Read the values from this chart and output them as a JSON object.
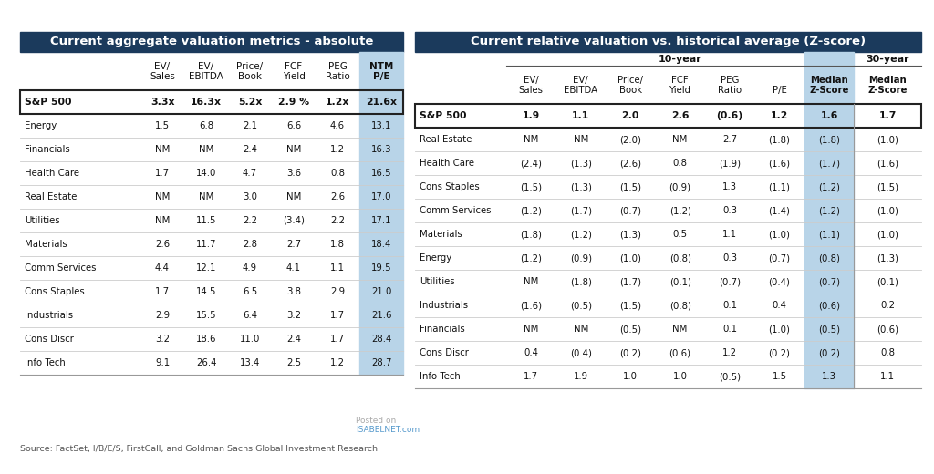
{
  "title1": "Current aggregate valuation metrics - absolute",
  "title2": "Current relative valuation vs. historical average (Z-score)",
  "header_bg": "#1b3a5c",
  "header_text_color": "#ffffff",
  "bg_color": "#ffffff",
  "table_bg": "#ffffff",
  "highlight_col_bg": "#b8d4e8",
  "subheader_10year": "10-year",
  "subheader_30year": "30-year",
  "left_table": {
    "col_headers_line1": [
      "EV/",
      "EV/",
      "Price/",
      "FCF",
      "PEG",
      "NTM"
    ],
    "col_headers_line2": [
      "Sales",
      "EBITDA",
      "Book",
      "Yield",
      "Ratio",
      "P/E"
    ],
    "sp500_row": [
      "S&P 500",
      "3.3x",
      "16.3x",
      "5.2x",
      "2.9 %",
      "1.2x",
      "21.6x"
    ],
    "rows": [
      [
        "Energy",
        "1.5",
        "6.8",
        "2.1",
        "6.6",
        "4.6",
        "13.1"
      ],
      [
        "Financials",
        "NM",
        "NM",
        "2.4",
        "NM",
        "1.2",
        "16.3"
      ],
      [
        "Health Care",
        "1.7",
        "14.0",
        "4.7",
        "3.6",
        "0.8",
        "16.5"
      ],
      [
        "Real Estate",
        "NM",
        "NM",
        "3.0",
        "NM",
        "2.6",
        "17.0"
      ],
      [
        "Utilities",
        "NM",
        "11.5",
        "2.2",
        "(3.4)",
        "2.2",
        "17.1"
      ],
      [
        "Materials",
        "2.6",
        "11.7",
        "2.8",
        "2.7",
        "1.8",
        "18.4"
      ],
      [
        "Comm Services",
        "4.4",
        "12.1",
        "4.9",
        "4.1",
        "1.1",
        "19.5"
      ],
      [
        "Cons Staples",
        "1.7",
        "14.5",
        "6.5",
        "3.8",
        "2.9",
        "21.0"
      ],
      [
        "Industrials",
        "2.9",
        "15.5",
        "6.4",
        "3.2",
        "1.7",
        "21.6"
      ],
      [
        "Cons Discr",
        "3.2",
        "18.6",
        "11.0",
        "2.4",
        "1.7",
        "28.4"
      ],
      [
        "Info Tech",
        "9.1",
        "26.4",
        "13.4",
        "2.5",
        "1.2",
        "28.7"
      ]
    ]
  },
  "right_table": {
    "col_headers_10yr_line1": [
      "EV/",
      "EV/",
      "Price/",
      "FCF",
      "PEG",
      "",
      "Median"
    ],
    "col_headers_10yr_line2": [
      "Sales",
      "EBITDA",
      "Book",
      "Yield",
      "Ratio",
      "P/E",
      "Z-Score"
    ],
    "col_headers_30yr_line1": [
      "Median"
    ],
    "col_headers_30yr_line2": [
      "Z-Score"
    ],
    "sp500_row": [
      "S&P 500",
      "1.9",
      "1.1",
      "2.0",
      "2.6",
      "(0.6)",
      "1.2",
      "1.6",
      "1.7"
    ],
    "rows": [
      [
        "Real Estate",
        "NM",
        "NM",
        "(2.0)",
        "NM",
        "2.7",
        "(1.8)",
        "(1.8)",
        "(1.0)"
      ],
      [
        "Health Care",
        "(2.4)",
        "(1.3)",
        "(2.6)",
        "0.8",
        "(1.9)",
        "(1.6)",
        "(1.7)",
        "(1.6)"
      ],
      [
        "Cons Staples",
        "(1.5)",
        "(1.3)",
        "(1.5)",
        "(0.9)",
        "1.3",
        "(1.1)",
        "(1.2)",
        "(1.5)"
      ],
      [
        "Comm Services",
        "(1.2)",
        "(1.7)",
        "(0.7)",
        "(1.2)",
        "0.3",
        "(1.4)",
        "(1.2)",
        "(1.0)"
      ],
      [
        "Materials",
        "(1.8)",
        "(1.2)",
        "(1.3)",
        "0.5",
        "1.1",
        "(1.0)",
        "(1.1)",
        "(1.0)"
      ],
      [
        "Energy",
        "(1.2)",
        "(0.9)",
        "(1.0)",
        "(0.8)",
        "0.3",
        "(0.7)",
        "(0.8)",
        "(1.3)"
      ],
      [
        "Utilities",
        "NM",
        "(1.8)",
        "(1.7)",
        "(0.1)",
        "(0.7)",
        "(0.4)",
        "(0.7)",
        "(0.1)"
      ],
      [
        "Industrials",
        "(1.6)",
        "(0.5)",
        "(1.5)",
        "(0.8)",
        "0.1",
        "0.4",
        "(0.6)",
        "0.2"
      ],
      [
        "Financials",
        "NM",
        "NM",
        "(0.5)",
        "NM",
        "0.1",
        "(1.0)",
        "(0.5)",
        "(0.6)"
      ],
      [
        "Cons Discr",
        "0.4",
        "(0.4)",
        "(0.2)",
        "(0.6)",
        "1.2",
        "(0.2)",
        "(0.2)",
        "0.8"
      ],
      [
        "Info Tech",
        "1.7",
        "1.9",
        "1.0",
        "1.0",
        "(0.5)",
        "1.5",
        "1.3",
        "1.1"
      ]
    ]
  },
  "source_text": "Source: FactSet, I/B/E/S, FirstCall, and Goldman Sachs Global Investment Research.",
  "watermark_line1": "Posted on",
  "watermark_line2": "ISABELNET.com"
}
